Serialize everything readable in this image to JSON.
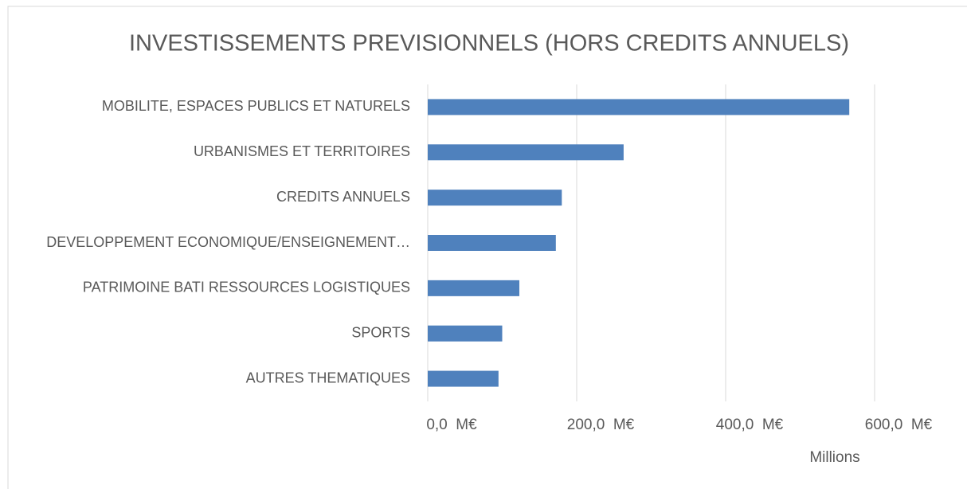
{
  "chart_data": {
    "type": "hbar",
    "title": "INVESTISSEMENTS PREVISIONNELS (HORS CREDITS ANNUELS)",
    "categories": [
      "MOBILITE, ESPACES PUBLICS ET NATURELS",
      "URBANISMES ET TERRITOIRES",
      "CREDITS ANNUELS",
      "DEVELOPPEMENT ECONOMIQUE/ENSEIGNEMENT…",
      "PATRIMOINE BATI RESSOURCES LOGISTIQUES",
      "SPORTS",
      "AUTRES THEMATIQUES"
    ],
    "values": [
      566,
      263,
      180,
      172,
      123,
      100,
      95
    ],
    "color": "#4f81bd",
    "xlim": [
      0,
      600
    ],
    "xticks": [
      {
        "value": 0,
        "label": "0,0  M€"
      },
      {
        "value": 200,
        "label": "200,0  M€"
      },
      {
        "value": 400,
        "label": "400,0  M€"
      },
      {
        "value": 600,
        "label": "600,0  M€"
      }
    ],
    "xlabel": "Millions",
    "grid": true
  }
}
